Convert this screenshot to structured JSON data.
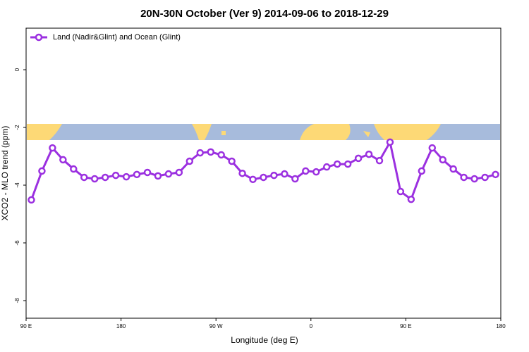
{
  "chart_data": {
    "type": "line",
    "title": "20N-30N October (Ver 9)   2014-09-06 to 2018-12-29",
    "x_label": "Longitude (deg E)",
    "y_label": "XCO2 - MLO trend (ppm)",
    "xlim": [
      90,
      540
    ],
    "xticks": [
      {
        "value": 90,
        "label": "90 E"
      },
      180,
      {
        "value": 270,
        "label": "90 W"
      },
      {
        "value": 360,
        "label": "0"
      },
      {
        "value": 450,
        "label": "90 E"
      },
      {
        "value": 540,
        "label": "180"
      }
    ],
    "ylim": [
      -8.61,
      1.44
    ],
    "yticks": [
      0,
      -2,
      -4,
      -6,
      -8
    ],
    "legend": "top-left",
    "x": [
      95,
      105,
      115,
      125,
      135,
      145,
      155,
      165,
      175,
      185,
      195,
      205,
      215,
      225,
      235,
      245,
      255,
      265,
      275,
      285,
      295,
      305,
      315,
      325,
      335,
      345,
      355,
      365,
      375,
      385,
      395,
      405,
      415,
      425,
      435,
      445,
      455,
      465,
      475,
      485,
      495,
      505,
      515,
      525,
      535
    ],
    "series": [
      {
        "name": "Land (Nadir&Glint) and Ocean (Glint)",
        "color": "#9b30e0",
        "values": [
          -4.51,
          -3.51,
          -2.71,
          -3.12,
          -3.44,
          -3.73,
          -3.78,
          -3.73,
          -3.66,
          -3.71,
          -3.63,
          -3.56,
          -3.68,
          -3.61,
          -3.56,
          -3.17,
          -2.88,
          -2.85,
          -2.95,
          -3.17,
          -3.59,
          -3.8,
          -3.73,
          -3.66,
          -3.61,
          -3.78,
          -3.51,
          -3.54,
          -3.37,
          -3.27,
          -3.27,
          -3.07,
          -2.93,
          -3.15,
          -2.51,
          -4.22,
          -4.49,
          -3.51,
          -2.71,
          -3.12,
          -3.44,
          -3.73,
          -3.78,
          -3.73,
          -3.63
        ]
      }
    ]
  }
}
